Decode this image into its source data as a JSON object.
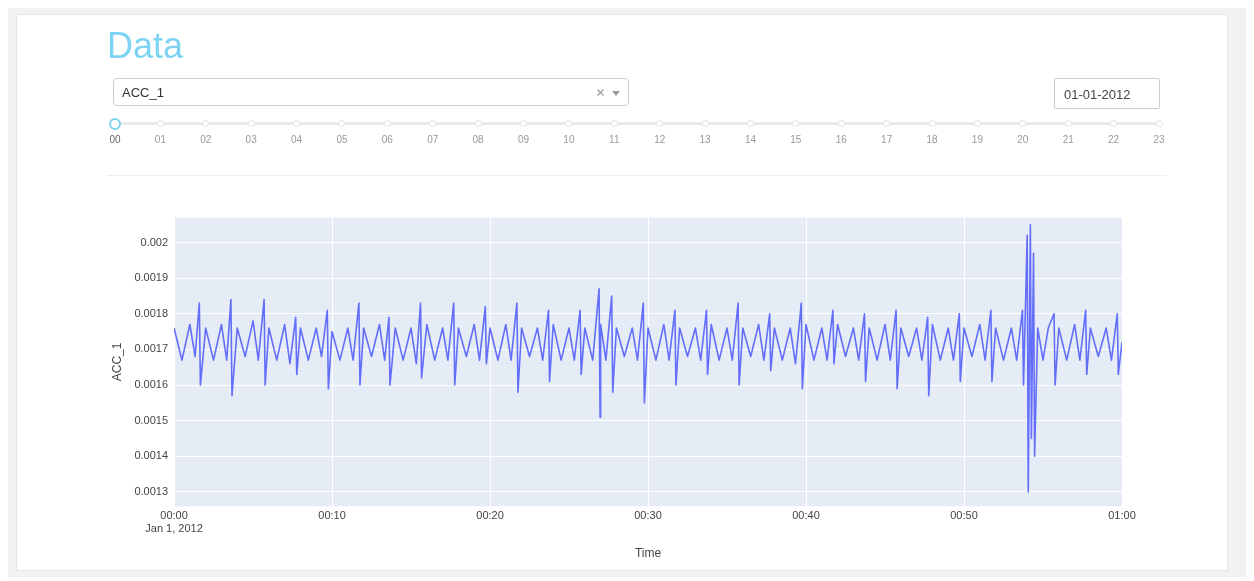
{
  "chart_data": {
    "type": "line",
    "title": "Data",
    "xlabel": "Time",
    "ylabel": "ACC_1",
    "annotations": [
      "ACC_1",
      "01-01-2012",
      "00",
      "01",
      "02",
      "03",
      "04",
      "05",
      "06",
      "07",
      "08",
      "09",
      "10",
      "11",
      "12",
      "13",
      "14",
      "15",
      "16",
      "17",
      "18",
      "19",
      "20",
      "21",
      "22",
      "23"
    ],
    "x": [
      "2012-01-01T00:00:00",
      "2012-01-01T00:00:30",
      "2012-01-01T00:01:00",
      "2012-01-01T00:01:20",
      "2012-01-01T00:01:36",
      "2012-01-01T00:01:40",
      "2012-01-01T00:02:00",
      "2012-01-01T00:02:30",
      "2012-01-01T00:03:00",
      "2012-01-01T00:03:20",
      "2012-01-01T00:03:36",
      "2012-01-01T00:03:40",
      "2012-01-01T00:04:00",
      "2012-01-01T00:04:30",
      "2012-01-01T00:05:00",
      "2012-01-01T00:05:20",
      "2012-01-01T00:05:42",
      "2012-01-01T00:05:46",
      "2012-01-01T00:06:00",
      "2012-01-01T00:06:30",
      "2012-01-01T00:07:00",
      "2012-01-01T00:07:20",
      "2012-01-01T00:07:42",
      "2012-01-01T00:07:46",
      "2012-01-01T00:08:00",
      "2012-01-01T00:08:30",
      "2012-01-01T00:09:00",
      "2012-01-01T00:09:20",
      "2012-01-01T00:09:42",
      "2012-01-01T00:09:46",
      "2012-01-01T00:10:00",
      "2012-01-01T00:10:30",
      "2012-01-01T00:11:00",
      "2012-01-01T00:11:20",
      "2012-01-01T00:11:42",
      "2012-01-01T00:11:46",
      "2012-01-01T00:12:00",
      "2012-01-01T00:12:30",
      "2012-01-01T00:13:00",
      "2012-01-01T00:13:20",
      "2012-01-01T00:13:36",
      "2012-01-01T00:13:40",
      "2012-01-01T00:14:00",
      "2012-01-01T00:14:30",
      "2012-01-01T00:15:00",
      "2012-01-01T00:15:20",
      "2012-01-01T00:15:36",
      "2012-01-01T00:15:40",
      "2012-01-01T00:16:00",
      "2012-01-01T00:16:30",
      "2012-01-01T00:17:00",
      "2012-01-01T00:17:20",
      "2012-01-01T00:17:42",
      "2012-01-01T00:17:46",
      "2012-01-01T00:18:00",
      "2012-01-01T00:18:30",
      "2012-01-01T00:19:00",
      "2012-01-01T00:19:20",
      "2012-01-01T00:19:42",
      "2012-01-01T00:19:46",
      "2012-01-01T00:20:00",
      "2012-01-01T00:20:30",
      "2012-01-01T00:21:00",
      "2012-01-01T00:21:20",
      "2012-01-01T00:21:42",
      "2012-01-01T00:21:46",
      "2012-01-01T00:22:00",
      "2012-01-01T00:22:30",
      "2012-01-01T00:23:00",
      "2012-01-01T00:23:20",
      "2012-01-01T00:23:42",
      "2012-01-01T00:23:46",
      "2012-01-01T00:24:00",
      "2012-01-01T00:24:30",
      "2012-01-01T00:25:00",
      "2012-01-01T00:25:20",
      "2012-01-01T00:25:42",
      "2012-01-01T00:25:46",
      "2012-01-01T00:26:00",
      "2012-01-01T00:26:30",
      "2012-01-01T00:26:54",
      "2012-01-01T00:26:58",
      "2012-01-01T00:27:00",
      "2012-01-01T00:27:20",
      "2012-01-01T00:27:42",
      "2012-01-01T00:27:46",
      "2012-01-01T00:28:00",
      "2012-01-01T00:28:30",
      "2012-01-01T00:29:00",
      "2012-01-01T00:29:20",
      "2012-01-01T00:29:42",
      "2012-01-01T00:29:46",
      "2012-01-01T00:30:00",
      "2012-01-01T00:30:30",
      "2012-01-01T00:31:00",
      "2012-01-01T00:31:20",
      "2012-01-01T00:31:42",
      "2012-01-01T00:31:46",
      "2012-01-01T00:32:00",
      "2012-01-01T00:32:30",
      "2012-01-01T00:33:00",
      "2012-01-01T00:33:20",
      "2012-01-01T00:33:42",
      "2012-01-01T00:33:46",
      "2012-01-01T00:34:00",
      "2012-01-01T00:34:30",
      "2012-01-01T00:35:00",
      "2012-01-01T00:35:20",
      "2012-01-01T00:35:42",
      "2012-01-01T00:35:46",
      "2012-01-01T00:36:00",
      "2012-01-01T00:36:30",
      "2012-01-01T00:37:00",
      "2012-01-01T00:37:20",
      "2012-01-01T00:37:42",
      "2012-01-01T00:37:46",
      "2012-01-01T00:38:00",
      "2012-01-01T00:38:30",
      "2012-01-01T00:39:00",
      "2012-01-01T00:39:20",
      "2012-01-01T00:39:42",
      "2012-01-01T00:39:46",
      "2012-01-01T00:40:00",
      "2012-01-01T00:40:30",
      "2012-01-01T00:41:00",
      "2012-01-01T00:41:20",
      "2012-01-01T00:41:42",
      "2012-01-01T00:41:46",
      "2012-01-01T00:42:00",
      "2012-01-01T00:42:30",
      "2012-01-01T00:43:00",
      "2012-01-01T00:43:20",
      "2012-01-01T00:43:42",
      "2012-01-01T00:43:46",
      "2012-01-01T00:44:00",
      "2012-01-01T00:44:30",
      "2012-01-01T00:45:00",
      "2012-01-01T00:45:20",
      "2012-01-01T00:45:42",
      "2012-01-01T00:45:46",
      "2012-01-01T00:46:00",
      "2012-01-01T00:46:30",
      "2012-01-01T00:47:00",
      "2012-01-01T00:47:20",
      "2012-01-01T00:47:42",
      "2012-01-01T00:47:46",
      "2012-01-01T00:48:00",
      "2012-01-01T00:48:30",
      "2012-01-01T00:49:00",
      "2012-01-01T00:49:20",
      "2012-01-01T00:49:42",
      "2012-01-01T00:49:46",
      "2012-01-01T00:50:00",
      "2012-01-01T00:50:30",
      "2012-01-01T00:51:00",
      "2012-01-01T00:51:20",
      "2012-01-01T00:51:42",
      "2012-01-01T00:51:46",
      "2012-01-01T00:52:00",
      "2012-01-01T00:52:30",
      "2012-01-01T00:53:00",
      "2012-01-01T00:53:20",
      "2012-01-01T00:53:42",
      "2012-01-01T00:53:46",
      "2012-01-01T00:54:00",
      "2012-01-01T00:54:04",
      "2012-01-01T00:54:12",
      "2012-01-01T00:54:16",
      "2012-01-01T00:54:24",
      "2012-01-01T00:54:28",
      "2012-01-01T00:54:40",
      "2012-01-01T00:55:00",
      "2012-01-01T00:55:20",
      "2012-01-01T00:55:42",
      "2012-01-01T00:55:46",
      "2012-01-01T00:56:00",
      "2012-01-01T00:56:30",
      "2012-01-01T00:57:00",
      "2012-01-01T00:57:20",
      "2012-01-01T00:57:42",
      "2012-01-01T00:57:46",
      "2012-01-01T00:58:00",
      "2012-01-01T00:58:30",
      "2012-01-01T00:59:00",
      "2012-01-01T00:59:20",
      "2012-01-01T00:59:42",
      "2012-01-01T00:59:46",
      "2012-01-01T01:00:00"
    ],
    "series": [
      {
        "color": "#636efa",
        "values": [
          0.00176,
          0.00167,
          0.00177,
          0.00168,
          0.00183,
          0.0016,
          0.00176,
          0.00167,
          0.00177,
          0.00167,
          0.00184,
          0.00157,
          0.00176,
          0.00168,
          0.00178,
          0.00167,
          0.00184,
          0.0016,
          0.00176,
          0.00167,
          0.00177,
          0.00166,
          0.00179,
          0.00163,
          0.00176,
          0.00167,
          0.00176,
          0.00168,
          0.00181,
          0.00159,
          0.00175,
          0.00167,
          0.00176,
          0.00167,
          0.00183,
          0.0016,
          0.00176,
          0.00168,
          0.00177,
          0.00167,
          0.00179,
          0.0016,
          0.00176,
          0.00167,
          0.00176,
          0.00166,
          0.00183,
          0.00162,
          0.00177,
          0.00167,
          0.00176,
          0.00167,
          0.00183,
          0.0016,
          0.00176,
          0.00168,
          0.00177,
          0.00167,
          0.00182,
          0.00166,
          0.00176,
          0.00167,
          0.00177,
          0.00167,
          0.00183,
          0.00158,
          0.00176,
          0.00168,
          0.00176,
          0.00167,
          0.00181,
          0.00161,
          0.00177,
          0.00167,
          0.00176,
          0.00167,
          0.00181,
          0.00163,
          0.00176,
          0.00167,
          0.00187,
          0.00151,
          0.00177,
          0.00167,
          0.00185,
          0.00158,
          0.00176,
          0.00168,
          0.00176,
          0.00167,
          0.00183,
          0.00155,
          0.00176,
          0.00167,
          0.00177,
          0.00167,
          0.00181,
          0.0016,
          0.00176,
          0.00168,
          0.00176,
          0.00167,
          0.00181,
          0.00163,
          0.00177,
          0.00167,
          0.00176,
          0.00167,
          0.00183,
          0.0016,
          0.00176,
          0.00168,
          0.00177,
          0.00167,
          0.0018,
          0.00164,
          0.00176,
          0.00167,
          0.00176,
          0.00166,
          0.00183,
          0.00159,
          0.00177,
          0.00167,
          0.00176,
          0.00167,
          0.00181,
          0.00166,
          0.00177,
          0.00168,
          0.00176,
          0.00167,
          0.0018,
          0.00161,
          0.00176,
          0.00167,
          0.00177,
          0.00167,
          0.00181,
          0.00159,
          0.00176,
          0.00168,
          0.00176,
          0.00167,
          0.00179,
          0.00157,
          0.00177,
          0.00167,
          0.00176,
          0.00167,
          0.0018,
          0.00161,
          0.00176,
          0.00168,
          0.00177,
          0.00167,
          0.00181,
          0.00161,
          0.00176,
          0.00167,
          0.00176,
          0.00167,
          0.00181,
          0.0016,
          0.00202,
          0.0013,
          0.00205,
          0.00145,
          0.00197,
          0.0014,
          0.00176,
          0.00167,
          0.00176,
          0.0018,
          0.0016,
          0.00176,
          0.00167,
          0.00177,
          0.00167,
          0.00181,
          0.00163,
          0.00176,
          0.00168,
          0.00176,
          0.00167,
          0.0018,
          0.00163,
          0.00172
        ]
      }
    ],
    "xlim": [
      "2012-01-01T00:00",
      "2012-01-01T01:00"
    ],
    "xticks": [
      {
        "value": "2012-01-01T00:00",
        "label": "00:00\nJan 1, 2012"
      },
      {
        "value": "2012-01-01T00:10",
        "label": "00:10"
      },
      {
        "value": "2012-01-01T00:20",
        "label": "00:20"
      },
      {
        "value": "2012-01-01T00:30",
        "label": "00:30"
      },
      {
        "value": "2012-01-01T00:40",
        "label": "00:40"
      },
      {
        "value": "2012-01-01T00:50",
        "label": "00:50"
      },
      {
        "value": "2012-01-01T01:00",
        "label": "01:00"
      }
    ],
    "ylim": [
      0.00126,
      0.00207
    ],
    "yticks": [
      0.0013,
      0.0014,
      0.0015,
      0.0016,
      0.0017,
      0.0018,
      0.0019,
      0.002
    ],
    "grid": true,
    "legend": false,
    "marker": "none"
  }
}
